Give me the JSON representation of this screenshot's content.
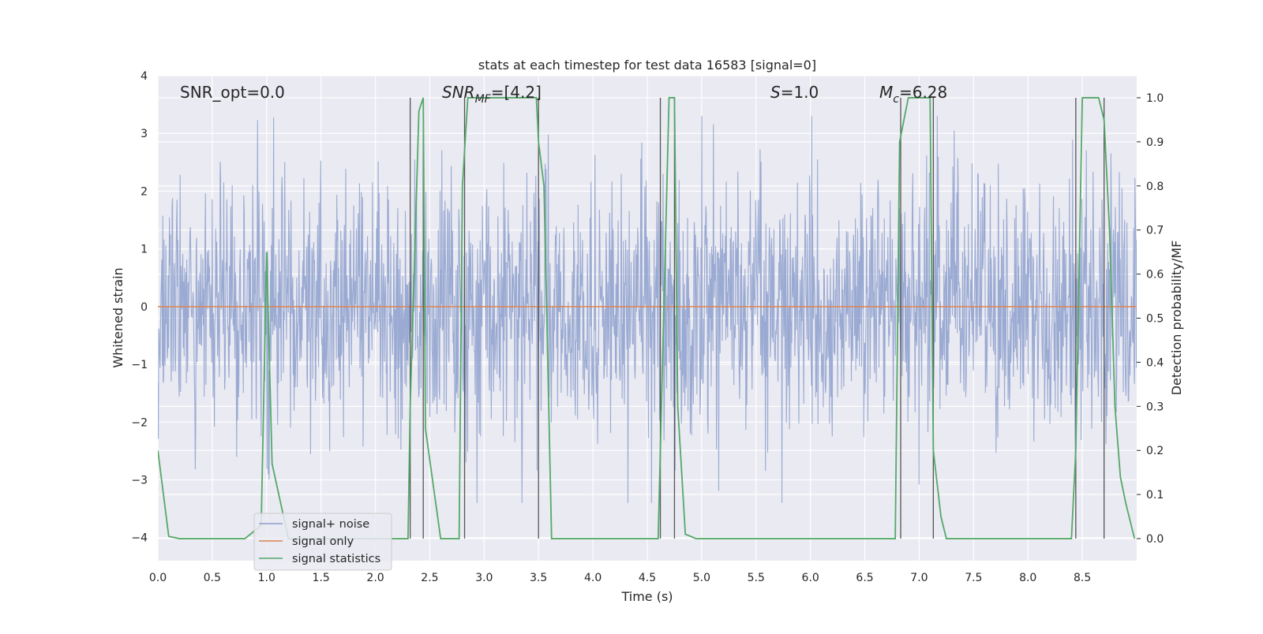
{
  "chart_data": {
    "type": "line",
    "title": "stats at each timestep for test data 16583 [signal=0]",
    "xlabel": "Time (s)",
    "ylabel_left": "Whitened strain",
    "ylabel_right": "Detection probability/MF",
    "xlim": [
      0.0,
      9.0
    ],
    "ylim_left": [
      -4.4,
      4.0
    ],
    "ylim_right": [
      -0.05,
      1.05
    ],
    "x_ticks": [
      "0.0",
      "0.5",
      "1.0",
      "1.5",
      "2.0",
      "2.5",
      "3.0",
      "3.5",
      "4.0",
      "4.5",
      "5.0",
      "5.5",
      "6.0",
      "6.5",
      "7.0",
      "7.5",
      "8.0",
      "8.5"
    ],
    "y_ticks_left": [
      "−4",
      "−3",
      "−2",
      "−1",
      "0",
      "1",
      "2",
      "3",
      "4"
    ],
    "y_ticks_right": [
      "0.0",
      "0.1",
      "0.2",
      "0.3",
      "0.4",
      "0.5",
      "0.6",
      "0.7",
      "0.8",
      "0.9",
      "1.0"
    ],
    "grid": true,
    "legend_position": "lower-left",
    "annotations": {
      "snr_opt": "SNR_opt=0.0",
      "snr_mf_main": "SNR",
      "snr_mf_sub": "MF",
      "snr_mf_tail": "=[4.2]",
      "s_main": "S",
      "s_tail": "=1.0",
      "mc_main": "M",
      "mc_sub": "c",
      "mc_tail": "=6.28"
    },
    "series": [
      {
        "name": "signal+ noise",
        "color": "#8c9fcc",
        "axis": "left",
        "description": "whitened strain noise, roughly within [-3.4, 3.4], 9 s long"
      },
      {
        "name": "signal only",
        "color": "#dd8452",
        "axis": "left",
        "x": [
          0.0,
          9.0
        ],
        "y": [
          0.0,
          0.0
        ]
      },
      {
        "name": "signal statistics",
        "color": "#55a868",
        "axis": "right",
        "x": [
          0.0,
          0.1,
          0.2,
          0.8,
          0.95,
          1.0,
          1.05,
          1.2,
          2.3,
          2.32,
          2.4,
          2.44,
          2.46,
          2.6,
          2.77,
          2.8,
          2.85,
          3.48,
          3.5,
          3.55,
          3.62,
          4.6,
          4.65,
          4.7,
          4.75,
          4.78,
          4.85,
          4.95,
          6.78,
          6.82,
          6.9,
          7.1,
          7.13,
          7.2,
          7.25,
          8.4,
          8.44,
          8.5,
          8.65,
          8.7,
          8.75,
          8.8,
          8.85,
          8.9,
          8.98
        ],
        "y": [
          0.2,
          0.005,
          0.0,
          0.0,
          0.03,
          0.65,
          0.17,
          0.0,
          0.0,
          0.3,
          0.97,
          1.0,
          0.25,
          0.0,
          0.0,
          0.8,
          1.0,
          1.0,
          0.9,
          0.8,
          0.0,
          0.0,
          0.5,
          1.0,
          1.0,
          0.3,
          0.01,
          0.0,
          0.0,
          0.9,
          1.0,
          1.0,
          0.2,
          0.05,
          0.0,
          0.0,
          0.2,
          1.0,
          1.0,
          0.95,
          0.7,
          0.3,
          0.14,
          0.08,
          0.0
        ]
      }
    ],
    "vertical_markers_s": [
      2.32,
      2.44,
      2.82,
      3.5,
      4.62,
      4.75,
      6.83,
      7.13,
      8.44,
      8.7
    ]
  }
}
